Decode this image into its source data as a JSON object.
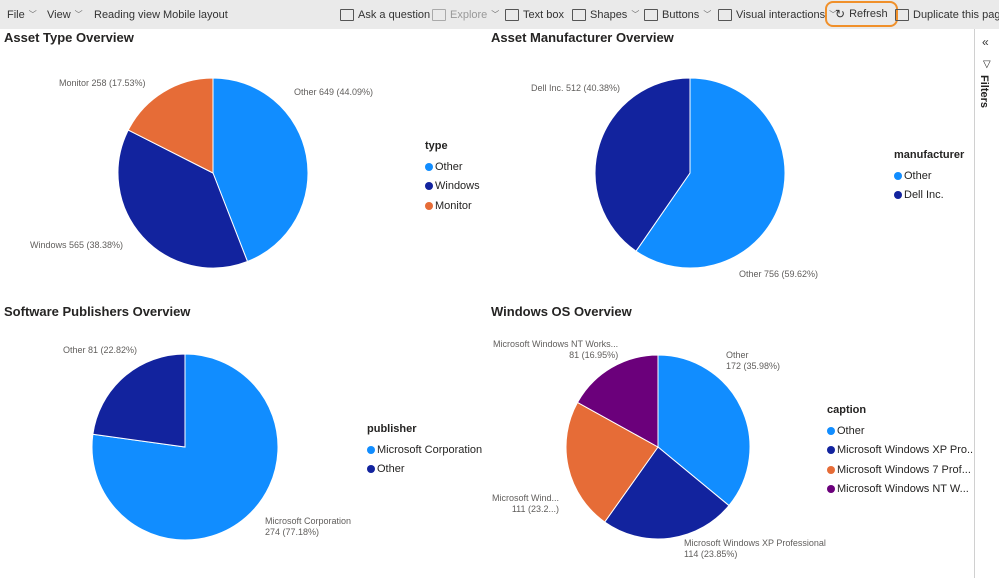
{
  "toolbar": {
    "file": "File",
    "view": "View",
    "reading_view": "Reading view",
    "mobile_layout": "Mobile layout",
    "ask": "Ask a question",
    "explore": "Explore",
    "text_box": "Text box",
    "shapes": "Shapes",
    "buttons": "Buttons",
    "visual_interactions": "Visual interactions",
    "refresh": "Refresh",
    "duplicate": "Duplicate this page"
  },
  "filters": {
    "label": "Filters"
  },
  "colors": [
    "#118DFF",
    "#12239E",
    "#E66C37",
    "#6B007B"
  ],
  "chart_data": [
    {
      "type": "pie",
      "title": "Asset Type Overview",
      "legend_title": "type",
      "slices": [
        {
          "name": "Other",
          "value": 649,
          "pct": "44.09%",
          "label": "Other 649 (44.09%)"
        },
        {
          "name": "Windows",
          "value": 565,
          "pct": "38.38%",
          "label": "Windows 565 (38.38%)"
        },
        {
          "name": "Monitor",
          "value": 258,
          "pct": "17.53%",
          "label": "Monitor 258 (17.53%)"
        }
      ]
    },
    {
      "type": "pie",
      "title": "Asset Manufacturer Overview",
      "legend_title": "manufacturer",
      "slices": [
        {
          "name": "Other",
          "value": 756,
          "pct": "59.62%",
          "label": "Other 756 (59.62%)"
        },
        {
          "name": "Dell Inc.",
          "value": 512,
          "pct": "40.38%",
          "label": "Dell Inc. 512 (40.38%)"
        }
      ]
    },
    {
      "type": "pie",
      "title": "Software Publishers Overview",
      "legend_title": "publisher",
      "slices": [
        {
          "name": "Microsoft Corporation",
          "value": 274,
          "pct": "77.18%",
          "label": "Microsoft Corporation",
          "label2": "274 (77.18%)"
        },
        {
          "name": "Other",
          "value": 81,
          "pct": "22.82%",
          "label": "Other 81 (22.82%)"
        }
      ]
    },
    {
      "type": "pie",
      "title": "Windows OS Overview",
      "legend_title": "caption",
      "slices": [
        {
          "name": "Other",
          "value": 172,
          "pct": "35.98%",
          "label": "Other",
          "label2": "172 (35.98%)"
        },
        {
          "name": "Microsoft Windows XP Pro...",
          "value": 114,
          "pct": "23.85%",
          "label": "Microsoft Windows XP Professional",
          "label2": "114 (23.85%)"
        },
        {
          "name": "Microsoft Windows 7 Prof...",
          "value": 111,
          "pct": "23.2...",
          "label": "Microsoft Wind...",
          "label2": "111 (23.2...)"
        },
        {
          "name": "Microsoft Windows NT W...",
          "value": 81,
          "pct": "16.95%",
          "label": "Microsoft Windows NT Works...",
          "label2": "81 (16.95%)"
        }
      ]
    }
  ]
}
